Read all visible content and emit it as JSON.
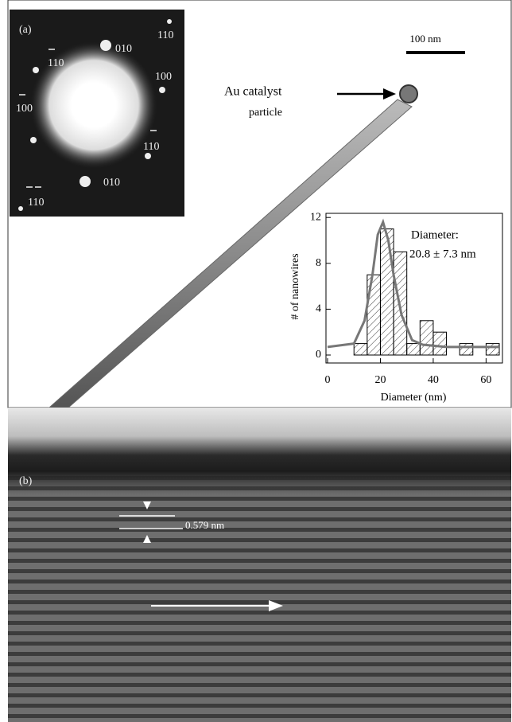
{
  "panel_a": {
    "label": "(a)",
    "scale_bar": "100 nm",
    "annotation": [
      "Au catalyst",
      "particle"
    ],
    "diffraction_spots": [
      "110",
      "110",
      "010",
      "100",
      "100",
      "110",
      "010",
      "110"
    ]
  },
  "panel_b": {
    "label": "(b)",
    "spacing": "0.579 nm"
  },
  "chart_data": {
    "type": "histogram",
    "x_label": "Diameter (nm)",
    "y_label": "# of nanowires",
    "annotation": [
      "Diameter:",
      "20.8 ± 7.3 nm"
    ],
    "bins": [
      10,
      15,
      20,
      25,
      30,
      35,
      40,
      45,
      50,
      55,
      60,
      65
    ],
    "values": [
      1,
      7,
      11,
      9,
      1,
      3,
      2,
      0,
      1,
      0,
      1
    ],
    "color": "#000000",
    "lines": [
      {
        "x": [
          0,
          10,
          14,
          17,
          19,
          21,
          23,
          25,
          28,
          32,
          36,
          45,
          65
        ],
        "values": [
          0.7,
          1,
          3,
          7,
          10.5,
          11.6,
          10,
          7,
          3.5,
          1.3,
          0.9,
          0.7,
          0.7
        ],
        "color": "#777777"
      }
    ],
    "xlim": [
      0,
      65
    ],
    "ylim": [
      0,
      12.5
    ],
    "xticks": [
      0,
      20,
      40,
      60
    ],
    "yticks": [
      0,
      4,
      8,
      12
    ]
  }
}
